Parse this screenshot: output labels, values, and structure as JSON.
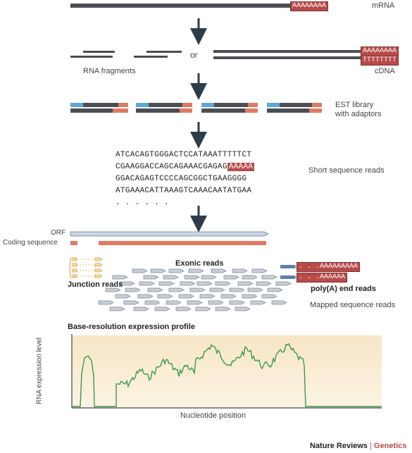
{
  "top": {
    "mrna_label": "mRNA",
    "mrna_tail": "AAAAAAAA",
    "or_label": "or",
    "rna_fragments_label": "RNA fragments",
    "cdna_tail_a": "AAAAAAAA",
    "cdna_tail_t": "TTTTTTTT",
    "cdna_label": "cDNA"
  },
  "library": {
    "label_line1": "EST library",
    "label_line2": "with adaptors"
  },
  "reads": {
    "lines": [
      "ATCACAGTGGGACTCCATAAATTTTTCT",
      "CGAAGGACCAGCAGAAACGAGAG",
      "GGACAGAGTCCCCAGCGGCTGAAGGGG",
      "ATGAAACATTAAAGTCAAACAATATGAA"
    ],
    "line2_tail": "AAAAA",
    "ellipsis": ". . . . . .",
    "label": "Short sequence reads"
  },
  "mapping": {
    "orf_label": "ORF",
    "coding_label": "Coding sequence",
    "exonic_label": "Exonic reads",
    "junction_label": "Junction reads",
    "polya_read1": ". . .AAAAAAAAA",
    "polya_read2": ". . .AAAAAA",
    "polya_label": "poly(A) end reads",
    "mapped_label": "Mapped sequence reads"
  },
  "profile": {
    "title": "Base-resolution expression profile",
    "ylabel": "RNA expression level",
    "xlabel": "Nucleotide position"
  },
  "credit": {
    "journal": "Nature Reviews",
    "separator": "|",
    "section": "Genetics"
  },
  "colors": {
    "accent_red": "#b84a4a",
    "adaptor_blue": "#5fa6d8",
    "adaptor_red": "#e07a63",
    "profile_green": "#3a9a4a",
    "arrow": "#2d3d4a"
  }
}
